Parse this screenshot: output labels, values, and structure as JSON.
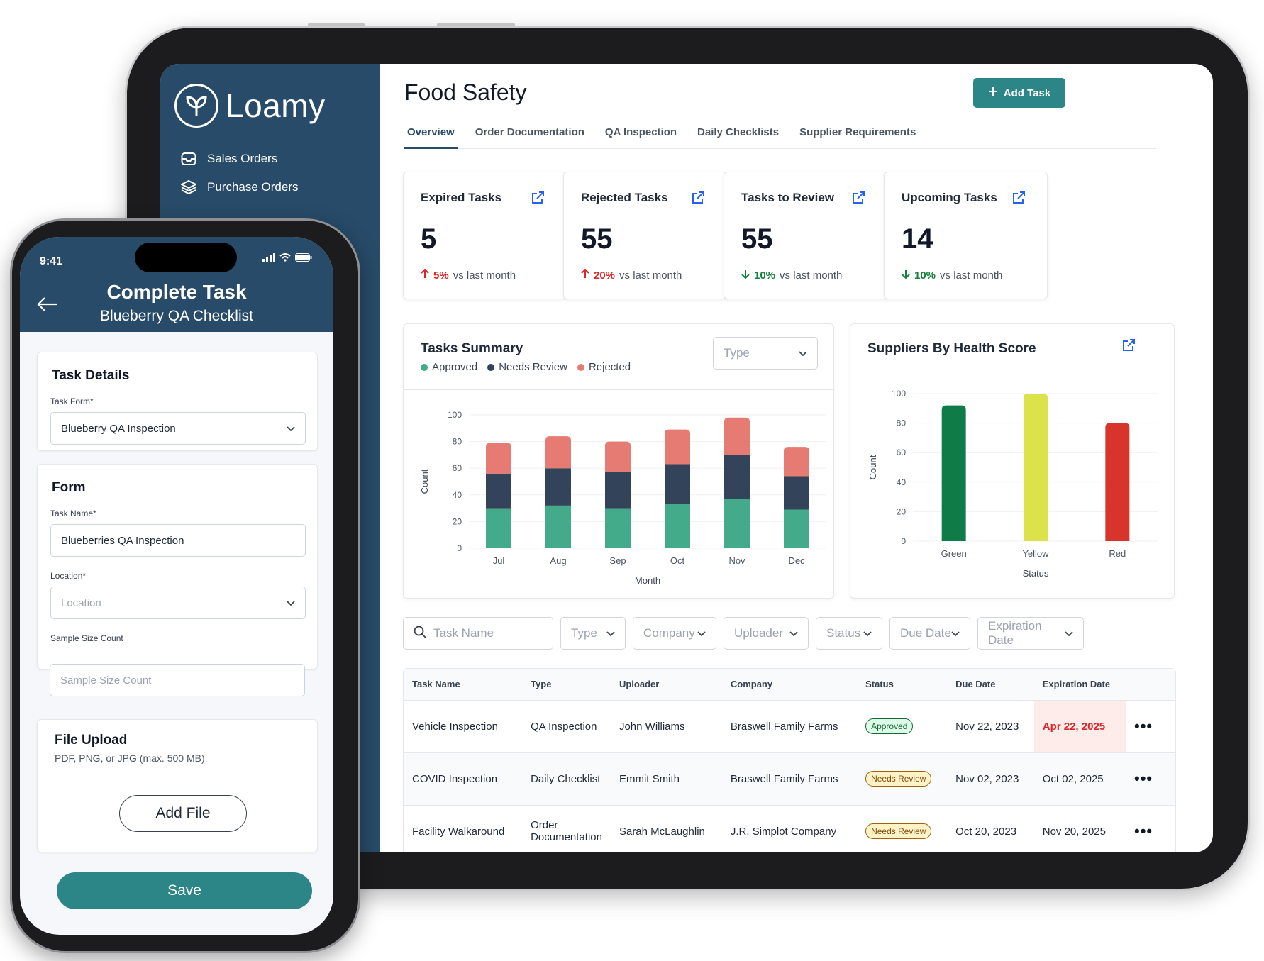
{
  "app": {
    "brand": "Loamy",
    "sidebar": {
      "items": [
        {
          "label": "Sales Orders",
          "icon": "inbox-icon"
        },
        {
          "label": "Purchase Orders",
          "icon": "layers-icon"
        }
      ]
    }
  },
  "dashboard": {
    "title": "Food Safety",
    "add_task_label": "Add Task",
    "tabs": [
      "Overview",
      "Order Documentation",
      "QA Inspection",
      "Daily Checklists",
      "Supplier Requirements"
    ],
    "active_tab": "Overview",
    "stats": [
      {
        "title": "Expired Tasks",
        "value": "5",
        "delta": "5%",
        "direction": "up",
        "suffix": "vs last month"
      },
      {
        "title": "Rejected Tasks",
        "value": "55",
        "delta": "20%",
        "direction": "up",
        "suffix": "vs last month"
      },
      {
        "title": "Tasks to Review",
        "value": "55",
        "delta": "10%",
        "direction": "down",
        "suffix": "vs last month"
      },
      {
        "title": "Upcoming Tasks",
        "value": "14",
        "delta": "10%",
        "direction": "down",
        "suffix": "vs last month"
      }
    ],
    "tasks_summary": {
      "title": "Tasks Summary",
      "type_placeholder": "Type",
      "legend": [
        {
          "name": "Approved",
          "color": "#43ab8a"
        },
        {
          "name": "Needs Review",
          "color": "#33445a"
        },
        {
          "name": "Rejected",
          "color": "#e57b72"
        }
      ]
    },
    "suppliers": {
      "title": "Suppliers By Health Score"
    },
    "filters": {
      "search_placeholder": "Task Name",
      "items": [
        "Type",
        "Company",
        "Uploader",
        "Status",
        "Due Date",
        "Expiration Date"
      ]
    },
    "table": {
      "headers": [
        "Task Name",
        "Type",
        "Uploader",
        "Company",
        "Status",
        "Due Date",
        "Expiration Date"
      ],
      "rows": [
        {
          "task": "Vehicle Inspection",
          "type": "QA Inspection",
          "uploader": "John Williams",
          "company": "Braswell Family Farms",
          "status": "Approved",
          "due": "Nov 22, 2023",
          "expiration": "Apr 22, 2025"
        },
        {
          "task": "COVID Inspection",
          "type": "Daily Checklist",
          "uploader": "Emmit Smith",
          "company": "Braswell Family Farms",
          "status": "Needs Review",
          "due": "Nov 02, 2023",
          "expiration": "Oct 02, 2025"
        },
        {
          "task": "Facility Walkaround",
          "type": "Order Documentation",
          "uploader": "Sarah McLaughlin",
          "company": "J.R. Simplot Company",
          "status": "Needs Review",
          "due": "Oct 20, 2023",
          "expiration": "Nov 20, 2025"
        }
      ]
    }
  },
  "chart_data": [
    {
      "type": "bar",
      "stacked": true,
      "categories": [
        "Jul",
        "Aug",
        "Sep",
        "Oct",
        "Nov",
        "Dec"
      ],
      "series": [
        {
          "name": "Approved",
          "values": [
            30,
            32,
            30,
            33,
            37,
            29
          ],
          "color": "#43ab8a"
        },
        {
          "name": "Needs Review",
          "values": [
            26,
            28,
            27,
            30,
            33,
            25
          ],
          "color": "#33445a"
        },
        {
          "name": "Rejected",
          "values": [
            23,
            24,
            23,
            26,
            28,
            22
          ],
          "color": "#e57b72"
        }
      ],
      "xlabel": "Month",
      "ylabel": "Count",
      "yticks": [
        0,
        20,
        40,
        60,
        80,
        100
      ],
      "ylim": [
        0,
        100
      ],
      "grid": true
    },
    {
      "type": "bar",
      "categories": [
        "Green",
        "Yellow",
        "Red"
      ],
      "values": [
        92,
        100,
        80
      ],
      "colors": [
        "#0f7c48",
        "#dbe24a",
        "#d7352c"
      ],
      "xlabel": "Status",
      "ylabel": "Count",
      "yticks": [
        0,
        20,
        40,
        60,
        80,
        100
      ],
      "ylim": [
        0,
        100
      ],
      "grid": true
    }
  ],
  "phone": {
    "time": "9:41",
    "title": "Complete Task",
    "subtitle": "Blueberry QA Checklist",
    "task_details": {
      "title": "Task Details",
      "form_label": "Task Form*",
      "form_value": "Blueberry QA Inspection"
    },
    "form": {
      "title": "Form",
      "name_label": "Task Name*",
      "name_value": "Blueberries QA Inspection",
      "location_label": "Location*",
      "location_placeholder": "Location",
      "sample_label": "Sample Size Count",
      "sample_placeholder": "Sample Size Count"
    },
    "file_upload": {
      "title": "File Upload",
      "hint": "PDF, PNG, or JPG (max. 500 MB)",
      "button": "Add File"
    },
    "save_label": "Save"
  }
}
